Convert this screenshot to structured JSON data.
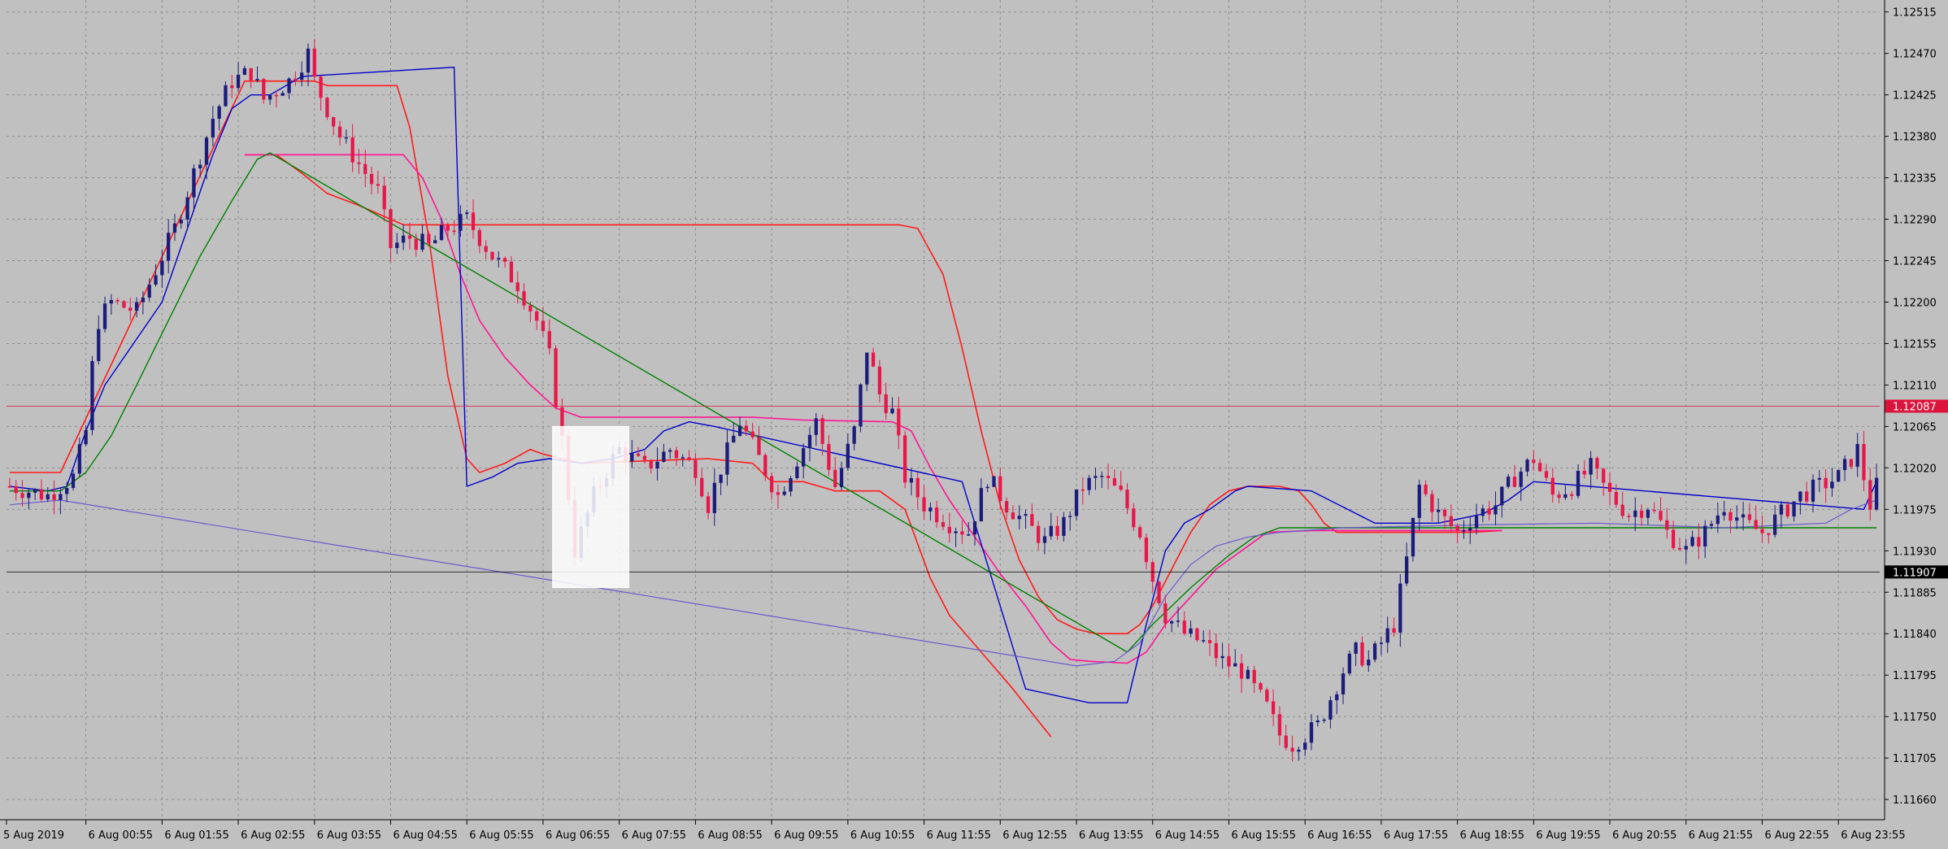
{
  "chart_data": {
    "type": "candlestick",
    "title": "",
    "ylim": [
      1.11638,
      1.12528
    ],
    "y_ticks": [
      "1.12515",
      "1.12470",
      "1.12425",
      "1.12380",
      "1.12335",
      "1.12290",
      "1.12245",
      "1.12200",
      "1.12155",
      "1.12110",
      "1.12065",
      "1.12020",
      "1.11975",
      "1.11930",
      "1.11885",
      "1.11840",
      "1.11795",
      "1.11750",
      "1.11705",
      "1.11660"
    ],
    "x_ticks": [
      "5 Aug 2019",
      "6 Aug 00:55",
      "6 Aug 01:55",
      "6 Aug 02:55",
      "6 Aug 03:55",
      "6 Aug 04:55",
      "6 Aug 05:55",
      "6 Aug 06:55",
      "6 Aug 07:55",
      "6 Aug 08:55",
      "6 Aug 09:55",
      "6 Aug 10:55",
      "6 Aug 11:55",
      "6 Aug 12:55",
      "6 Aug 13:55",
      "6 Aug 14:55",
      "6 Aug 15:55",
      "6 Aug 16:55",
      "6 Aug 17:55",
      "6 Aug 18:55",
      "6 Aug 19:55",
      "6 Aug 20:55",
      "6 Aug 21:55",
      "6 Aug 22:55",
      "6 Aug 23:55"
    ],
    "bars_per_hour": 12,
    "bar_count": 295,
    "price_lines": [
      {
        "label": "1.12087",
        "value": 1.12087,
        "color": "#dc143c"
      },
      {
        "label": "1.11907",
        "value": 1.11907,
        "color": "#000000"
      }
    ],
    "colors": {
      "background": "#c0c0c0",
      "grid": "#8c8c8c",
      "bull": "#1c1c7c",
      "bear": "#e8174a",
      "red_line": "#ff1a1a",
      "magenta_line": "#ff1493",
      "blue_line": "#0000cc",
      "green_line": "#008000",
      "slate_line": "#6a5acd",
      "marker": "#ffd700"
    },
    "close_path": [
      [
        0,
        1.12
      ],
      [
        6,
        1.1199
      ],
      [
        10,
        1.1201
      ],
      [
        12,
        1.1206
      ],
      [
        13,
        1.1213
      ],
      [
        14,
        1.1218
      ],
      [
        16,
        1.122
      ],
      [
        20,
        1.1219
      ],
      [
        22,
        1.1222
      ],
      [
        26,
        1.1228
      ],
      [
        29,
        1.1234
      ],
      [
        32,
        1.124
      ],
      [
        35,
        1.1244
      ],
      [
        38,
        1.1245
      ],
      [
        40,
        1.1242
      ],
      [
        44,
        1.1244
      ],
      [
        47,
        1.1247
      ],
      [
        48,
        1.1244
      ],
      [
        50,
        1.1241
      ],
      [
        52,
        1.1238
      ],
      [
        54,
        1.1236
      ],
      [
        56,
        1.1234
      ],
      [
        58,
        1.1232
      ],
      [
        60,
        1.1226
      ],
      [
        63,
        1.1227
      ],
      [
        66,
        1.1226
      ],
      [
        69,
        1.1228
      ],
      [
        72,
        1.1229
      ],
      [
        74,
        1.1227
      ],
      [
        76,
        1.1225
      ],
      [
        80,
        1.1222
      ],
      [
        83,
        1.1218
      ],
      [
        85,
        1.1214
      ],
      [
        87,
        1.1205
      ],
      [
        88,
        1.1199
      ],
      [
        89,
        1.1193
      ],
      [
        92,
        1.1199
      ],
      [
        95,
        1.1203
      ],
      [
        96,
        1.1204
      ],
      [
        100,
        1.1202
      ],
      [
        104,
        1.1204
      ],
      [
        108,
        1.1202
      ],
      [
        110,
        1.1198
      ],
      [
        112,
        1.1202
      ],
      [
        115,
        1.1207
      ],
      [
        118,
        1.1203
      ],
      [
        121,
        1.1199
      ],
      [
        124,
        1.1203
      ],
      [
        127,
        1.1207
      ],
      [
        130,
        1.12
      ],
      [
        133,
        1.1206
      ],
      [
        135,
        1.1215
      ],
      [
        137,
        1.121
      ],
      [
        139,
        1.1208
      ],
      [
        141,
        1.1201
      ],
      [
        144,
        1.1198
      ],
      [
        148,
        1.1196
      ],
      [
        151,
        1.1195
      ],
      [
        154,
        1.1201
      ],
      [
        157,
        1.1198
      ],
      [
        160,
        1.1196
      ],
      [
        163,
        1.1194
      ],
      [
        166,
        1.1196
      ],
      [
        169,
        1.12
      ],
      [
        172,
        1.1201
      ],
      [
        175,
        1.1199
      ],
      [
        178,
        1.1195
      ],
      [
        180,
        1.119
      ],
      [
        182,
        1.1186
      ],
      [
        185,
        1.1184
      ],
      [
        188,
        1.1183
      ],
      [
        191,
        1.1181
      ],
      [
        194,
        1.118
      ],
      [
        196,
        1.1178
      ],
      [
        198,
        1.1176
      ],
      [
        200,
        1.1173
      ],
      [
        202,
        1.1172
      ],
      [
        204,
        1.1173
      ],
      [
        206,
        1.1174
      ],
      [
        208,
        1.1177
      ],
      [
        210,
        1.118
      ],
      [
        212,
        1.1182
      ],
      [
        214,
        1.1181
      ],
      [
        216,
        1.1183
      ],
      [
        218,
        1.1185
      ],
      [
        220,
        1.1192
      ],
      [
        222,
        1.12
      ],
      [
        225,
        1.1197
      ],
      [
        228,
        1.1195
      ],
      [
        231,
        1.1197
      ],
      [
        234,
        1.1198
      ],
      [
        237,
        1.1201
      ],
      [
        240,
        1.1203
      ],
      [
        243,
        1.1199
      ],
      [
        246,
        1.12
      ],
      [
        249,
        1.1202
      ],
      [
        252,
        1.1199
      ],
      [
        255,
        1.1197
      ],
      [
        258,
        1.1198
      ],
      [
        261,
        1.1195
      ],
      [
        264,
        1.1193
      ],
      [
        267,
        1.1195
      ],
      [
        270,
        1.1198
      ],
      [
        273,
        1.1196
      ],
      [
        276,
        1.1195
      ],
      [
        279,
        1.1197
      ],
      [
        282,
        1.1199
      ],
      [
        285,
        1.12
      ],
      [
        288,
        1.1201
      ],
      [
        291,
        1.1204
      ],
      [
        293,
        1.1198
      ],
      [
        294,
        1.12
      ]
    ],
    "indicators": [
      {
        "color_key": "red_line",
        "width": 1.6,
        "points": [
          [
            0,
            1.12015
          ],
          [
            8,
            1.12015
          ],
          [
            37,
            1.1244
          ],
          [
            48,
            1.1244
          ],
          [
            50,
            1.12435
          ],
          [
            61,
            1.12435
          ],
          [
            63,
            1.1239
          ],
          [
            66,
            1.1227
          ],
          [
            69,
            1.1212
          ],
          [
            72,
            1.1203
          ],
          [
            74,
            1.12015
          ],
          [
            78,
            1.12025
          ],
          [
            82,
            1.1204
          ],
          [
            84,
            1.12035
          ],
          [
            90,
            1.12025
          ],
          [
            110,
            1.1203
          ],
          [
            117,
            1.12025
          ],
          [
            120,
            1.12005
          ],
          [
            125,
            1.12005
          ],
          [
            130,
            1.11995
          ],
          [
            137,
            1.11995
          ],
          [
            141,
            1.11975
          ],
          [
            145,
            1.119
          ],
          [
            148,
            1.1186
          ],
          [
            153,
            1.1182
          ],
          [
            158,
            1.1178
          ],
          [
            162,
            1.11745
          ],
          [
            164,
            1.11728
          ]
        ]
      },
      {
        "color_key": "red_line",
        "width": 1.6,
        "points": [
          [
            37,
            1.1236
          ],
          [
            42,
            1.1236
          ],
          [
            46,
            1.1234
          ],
          [
            50,
            1.12318
          ],
          [
            55,
            1.12305
          ],
          [
            60,
            1.1229
          ],
          [
            62,
            1.12284
          ],
          [
            140,
            1.12284
          ],
          [
            143,
            1.1228
          ],
          [
            147,
            1.1223
          ],
          [
            150,
            1.1215
          ],
          [
            153,
            1.1206
          ],
          [
            156,
            1.1198
          ],
          [
            159,
            1.1192
          ],
          [
            162,
            1.1188
          ],
          [
            165,
            1.11855
          ],
          [
            168,
            1.11845
          ],
          [
            171,
            1.1184
          ],
          [
            174,
            1.1184
          ],
          [
            176,
            1.1184
          ],
          [
            178,
            1.1185
          ],
          [
            180,
            1.1187
          ],
          [
            183,
            1.1191
          ],
          [
            186,
            1.1195
          ],
          [
            189,
            1.1198
          ],
          [
            192,
            1.11995
          ],
          [
            195,
            1.12
          ],
          [
            200,
            1.12
          ],
          [
            203,
            1.11995
          ],
          [
            205,
            1.1198
          ],
          [
            207,
            1.1196
          ],
          [
            209,
            1.1195
          ],
          [
            213,
            1.1195
          ],
          [
            218,
            1.1195
          ],
          [
            230,
            1.1195
          ],
          [
            235,
            1.11952
          ]
        ]
      },
      {
        "color_key": "magenta_line",
        "width": 1.6,
        "points": [
          [
            37,
            1.1236
          ],
          [
            62,
            1.1236
          ],
          [
            65,
            1.12335
          ],
          [
            68,
            1.1229
          ],
          [
            71,
            1.1223
          ],
          [
            74,
            1.1218
          ],
          [
            78,
            1.1214
          ],
          [
            82,
            1.1211
          ],
          [
            86,
            1.12085
          ],
          [
            90,
            1.12075
          ],
          [
            98,
            1.12075
          ],
          [
            110,
            1.12075
          ],
          [
            117,
            1.12075
          ],
          [
            125,
            1.12072
          ],
          [
            139,
            1.1207
          ],
          [
            142,
            1.1206
          ],
          [
            145,
            1.1202
          ],
          [
            148,
            1.11985
          ],
          [
            152,
            1.11945
          ],
          [
            156,
            1.11905
          ],
          [
            160,
            1.1187
          ],
          [
            164,
            1.1183
          ],
          [
            167,
            1.11812
          ],
          [
            170,
            1.1181
          ],
          [
            176,
            1.11808
          ],
          [
            179,
            1.1182
          ],
          [
            182,
            1.1185
          ],
          [
            186,
            1.1188
          ],
          [
            190,
            1.1191
          ],
          [
            194,
            1.1193
          ],
          [
            198,
            1.1195
          ],
          [
            205,
            1.11952
          ],
          [
            215,
            1.11952
          ],
          [
            225,
            1.11952
          ],
          [
            235,
            1.11952
          ]
        ]
      },
      {
        "color_key": "blue_line",
        "width": 1.4,
        "points": [
          [
            0,
            1.12
          ],
          [
            6,
            1.11995
          ],
          [
            9,
            1.12
          ],
          [
            12,
            1.1206
          ],
          [
            15,
            1.1211
          ],
          [
            19,
            1.1215
          ],
          [
            24,
            1.122
          ],
          [
            28,
            1.1228
          ],
          [
            32,
            1.1236
          ],
          [
            35,
            1.1241
          ],
          [
            38,
            1.12425
          ],
          [
            41,
            1.12425
          ],
          [
            46,
            1.12445
          ],
          [
            70,
            1.12455
          ],
          [
            72,
            1.12
          ],
          [
            76,
            1.1201
          ],
          [
            80,
            1.12025
          ],
          [
            85,
            1.1203
          ],
          [
            90,
            1.12025
          ],
          [
            95,
            1.1203
          ],
          [
            100,
            1.1204
          ],
          [
            103,
            1.1206
          ],
          [
            107,
            1.1207
          ],
          [
            111,
            1.12065
          ],
          [
            150,
            1.12005
          ],
          [
            160,
            1.1178
          ],
          [
            170,
            1.11765
          ],
          [
            176,
            1.11765
          ],
          [
            179,
            1.1185
          ],
          [
            182,
            1.1193
          ],
          [
            185,
            1.1196
          ],
          [
            189,
            1.11975
          ],
          [
            193,
            1.11995
          ],
          [
            195,
            1.12
          ],
          [
            205,
            1.11995
          ],
          [
            215,
            1.1196
          ],
          [
            225,
            1.1196
          ],
          [
            232,
            1.1197
          ],
          [
            236,
            1.11985
          ],
          [
            240,
            1.12005
          ],
          [
            292,
            1.11975
          ],
          [
            294,
            1.12005
          ]
        ]
      },
      {
        "color_key": "green_line",
        "width": 1.4,
        "points": [
          [
            0,
            1.11995
          ],
          [
            8,
            1.11995
          ],
          [
            12,
            1.12015
          ],
          [
            16,
            1.12055
          ],
          [
            20,
            1.1211
          ],
          [
            25,
            1.1218
          ],
          [
            30,
            1.1225
          ],
          [
            35,
            1.1231
          ],
          [
            39,
            1.12355
          ],
          [
            41,
            1.12362
          ],
          [
            176,
            1.1182
          ],
          [
            180,
            1.1185
          ],
          [
            186,
            1.1189
          ],
          [
            192,
            1.11925
          ],
          [
            196,
            1.11945
          ],
          [
            200,
            1.11955
          ],
          [
            210,
            1.11955
          ],
          [
            225,
            1.11955
          ],
          [
            240,
            1.11955
          ],
          [
            260,
            1.11955
          ],
          [
            294,
            1.11955
          ]
        ]
      },
      {
        "color_key": "slate_line",
        "width": 1.2,
        "points": [
          [
            0,
            1.1198
          ],
          [
            8,
            1.11985
          ],
          [
            168,
            1.11805
          ],
          [
            174,
            1.1181
          ],
          [
            178,
            1.1183
          ],
          [
            182,
            1.1188
          ],
          [
            186,
            1.11915
          ],
          [
            190,
            1.11935
          ],
          [
            195,
            1.11945
          ],
          [
            200,
            1.1195
          ],
          [
            210,
            1.11955
          ],
          [
            230,
            1.11958
          ],
          [
            250,
            1.1196
          ],
          [
            270,
            1.11955
          ],
          [
            286,
            1.1196
          ],
          [
            290,
            1.11975
          ],
          [
            294,
            1.11985
          ]
        ]
      }
    ],
    "selection_rect": {
      "from_bar": 86,
      "to_bar": 97,
      "top": 1.12065,
      "bottom": 1.1189
    }
  }
}
